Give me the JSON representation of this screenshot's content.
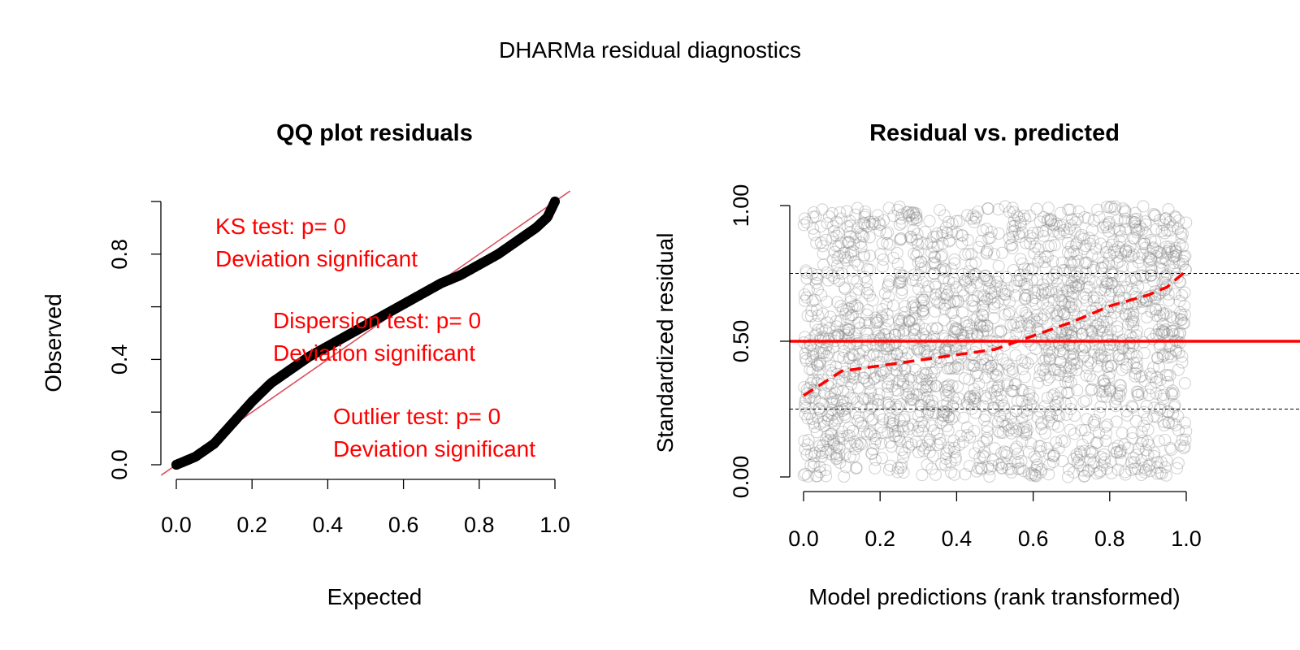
{
  "figure": {
    "title": "DHARMa residual diagnostics"
  },
  "colors": {
    "axis": "#000000",
    "qq_points": "#000000",
    "reference_line": "#d9515e",
    "test_text": "#ff0000",
    "scatter_points": "#7a7a7a",
    "fit_line": "#ff0000",
    "quantile_lines": "#000000"
  },
  "chart_data": [
    {
      "type": "scatter",
      "title": "QQ plot residuals",
      "xlabel": "Expected",
      "ylabel": "Observed",
      "xlim": [
        0,
        1
      ],
      "ylim": [
        0,
        1
      ],
      "x_ticks": [
        0.0,
        0.2,
        0.4,
        0.6,
        0.8,
        1.0
      ],
      "x_tick_labels": [
        "0.0",
        "0.2",
        "0.4",
        "0.6",
        "0.8",
        "1.0"
      ],
      "y_ticks": [
        0.0,
        0.2,
        0.4,
        0.6,
        0.8,
        1.0
      ],
      "y_tick_labels": [
        "0.0",
        "",
        "0.4",
        "",
        "0.8",
        ""
      ],
      "grid": false,
      "qq_curve": {
        "x": [
          0.0,
          0.05,
          0.1,
          0.15,
          0.2,
          0.25,
          0.3,
          0.35,
          0.4,
          0.45,
          0.5,
          0.55,
          0.6,
          0.65,
          0.7,
          0.75,
          0.8,
          0.85,
          0.9,
          0.95,
          0.98,
          1.0
        ],
        "y": [
          0.0,
          0.03,
          0.08,
          0.16,
          0.24,
          0.31,
          0.36,
          0.41,
          0.45,
          0.49,
          0.53,
          0.57,
          0.61,
          0.65,
          0.69,
          0.72,
          0.76,
          0.8,
          0.85,
          0.9,
          0.94,
          1.0
        ]
      },
      "reference_line": {
        "slope": 1,
        "intercept": 0
      },
      "annotations": [
        {
          "lines": [
            "KS test: p= 0",
            "Deviation  significant"
          ]
        },
        {
          "lines": [
            "Dispersion test: p= 0",
            "Deviation  significant"
          ]
        },
        {
          "lines": [
            "Outlier test: p= 0",
            "Deviation  significant"
          ]
        }
      ]
    },
    {
      "type": "scatter",
      "title": "Residual vs. predicted",
      "xlabel": "Model predictions (rank transformed)",
      "ylabel": "Standardized residual",
      "xlim": [
        0,
        1
      ],
      "ylim": [
        0,
        1
      ],
      "x_ticks": [
        0.0,
        0.2,
        0.4,
        0.6,
        0.8,
        1.0
      ],
      "x_tick_labels": [
        "0.0",
        "0.2",
        "0.4",
        "0.6",
        "0.8",
        "1.0"
      ],
      "y_ticks": [
        0.0,
        0.5,
        1.0
      ],
      "y_tick_labels": [
        "0.00",
        "0.50",
        "1.00"
      ],
      "grid": false,
      "points": "uniform cloud of residuals in [0,1] x [0,1]",
      "point_count": 2200,
      "quantile_lines": [
        0.25,
        0.5,
        0.75
      ],
      "fit_curve": {
        "x": [
          0.0,
          0.1,
          0.2,
          0.3,
          0.4,
          0.5,
          0.6,
          0.7,
          0.8,
          0.9,
          0.95,
          1.0
        ],
        "y": [
          0.3,
          0.39,
          0.41,
          0.43,
          0.45,
          0.47,
          0.52,
          0.57,
          0.63,
          0.67,
          0.7,
          0.76
        ]
      }
    }
  ]
}
